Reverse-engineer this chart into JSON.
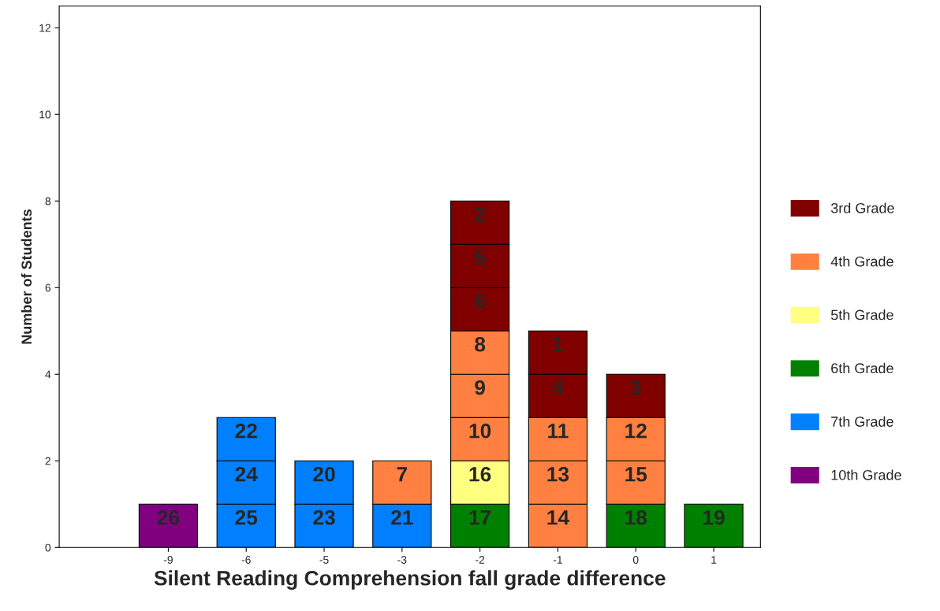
{
  "chart_data": {
    "type": "bar",
    "stacked": true,
    "xlabel": "Silent Reading Comprehension fall grade difference",
    "ylabel": "Number of Students",
    "categories": [
      "-9",
      "-6",
      "-5",
      "-3",
      "-2",
      "-1",
      "0",
      "1"
    ],
    "series": [
      {
        "name": "10th Grade",
        "color": "#800080",
        "values": [
          1,
          null,
          null,
          null,
          null,
          null,
          null,
          null
        ]
      },
      {
        "name": "7th Grade",
        "color": "#0080ff",
        "values": [
          null,
          1,
          1,
          1,
          null,
          null,
          null,
          null
        ]
      },
      {
        "color": "#0080ff",
        "values": [
          null,
          1,
          1,
          null,
          null,
          null,
          null,
          null
        ]
      },
      {
        "color": "#0080ff",
        "values": [
          null,
          1,
          null,
          null,
          null,
          null,
          null,
          null
        ]
      },
      {
        "name": "6th Grade",
        "color": "#008000",
        "values": [
          null,
          null,
          null,
          null,
          1,
          null,
          1,
          1
        ]
      },
      {
        "name": "5th Grade",
        "color": "#ffff80",
        "values": [
          null,
          null,
          null,
          null,
          1,
          null,
          null,
          null
        ]
      },
      {
        "name": "4th Grade",
        "color": "#ff8040",
        "values": [
          null,
          null,
          null,
          1,
          1,
          1,
          1,
          null
        ]
      },
      {
        "color": "#ff8040",
        "values": [
          null,
          null,
          null,
          null,
          1,
          1,
          1,
          null
        ]
      },
      {
        "color": "#ff8040",
        "values": [
          null,
          null,
          null,
          null,
          1,
          1,
          null,
          null
        ]
      },
      {
        "name": "3rd Grade",
        "color": "#800000",
        "values": [
          null,
          null,
          null,
          null,
          1,
          1,
          1,
          null
        ]
      },
      {
        "color": "#800000",
        "values": [
          null,
          null,
          null,
          null,
          1,
          1,
          null,
          null
        ]
      },
      {
        "color": "#800000",
        "values": [
          null,
          null,
          null,
          null,
          1,
          null,
          null,
          null
        ]
      }
    ],
    "ylim": [
      0,
      12.5
    ],
    "yticks": [
      0,
      2,
      4,
      6,
      8,
      10,
      12
    ],
    "grid": false,
    "legend": "right",
    "annotations": [
      {
        "text": "26",
        "x": "-9",
        "y": 1
      },
      {
        "text": "25",
        "x": "-6",
        "y": 1
      },
      {
        "text": "24",
        "x": "-6",
        "y": 2
      },
      {
        "text": "22",
        "x": "-6",
        "y": 3
      },
      {
        "text": "23",
        "x": "-5",
        "y": 1
      },
      {
        "text": "20",
        "x": "-5",
        "y": 2
      },
      {
        "text": "21",
        "x": "-3",
        "y": 1
      },
      {
        "text": "7",
        "x": "-3",
        "y": 2
      },
      {
        "text": "17",
        "x": "-2",
        "y": 1
      },
      {
        "text": "16",
        "x": "-2",
        "y": 2
      },
      {
        "text": "10",
        "x": "-2",
        "y": 3
      },
      {
        "text": "9",
        "x": "-2",
        "y": 4
      },
      {
        "text": "8",
        "x": "-2",
        "y": 5
      },
      {
        "text": "6",
        "x": "-2",
        "y": 6
      },
      {
        "text": "5",
        "x": "-2",
        "y": 7
      },
      {
        "text": "2",
        "x": "-2",
        "y": 8
      },
      {
        "text": "14",
        "x": "-1",
        "y": 1
      },
      {
        "text": "13",
        "x": "-1",
        "y": 2
      },
      {
        "text": "11",
        "x": "-1",
        "y": 3
      },
      {
        "text": "4",
        "x": "-1",
        "y": 4
      },
      {
        "text": "1",
        "x": "-1",
        "y": 5
      },
      {
        "text": "18",
        "x": "0",
        "y": 1
      },
      {
        "text": "15",
        "x": "0",
        "y": 2
      },
      {
        "text": "12",
        "x": "0",
        "y": 3
      },
      {
        "text": "3",
        "x": "0",
        "y": 4
      },
      {
        "text": "19",
        "x": "1",
        "y": 1
      }
    ]
  }
}
